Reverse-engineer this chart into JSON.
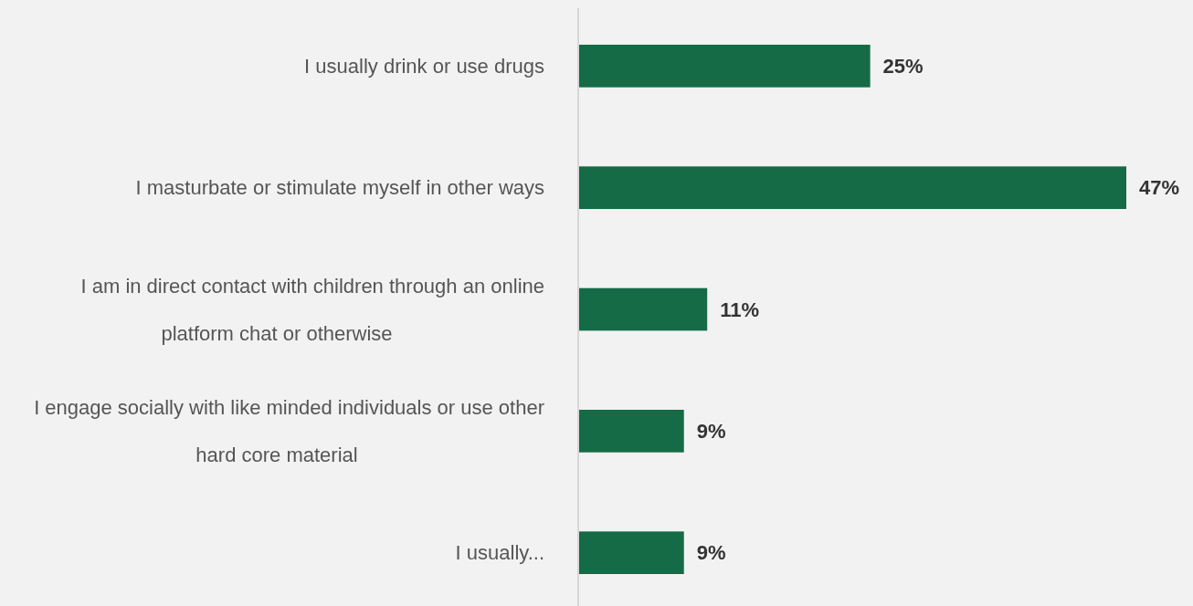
{
  "chart_data": {
    "type": "bar",
    "orientation": "horizontal",
    "categories": [
      "I usually drink or use drugs",
      "I masturbate or stimulate myself in other ways",
      "I am in direct contact with children through an online platform chat or otherwise",
      "I engage socially with like minded individuals or use other hard core material",
      "I usually..."
    ],
    "values": [
      25,
      47,
      11,
      9,
      9
    ],
    "value_labels": [
      "25%",
      "47%",
      "11%",
      "9%",
      "9%"
    ],
    "color": "#156b46"
  }
}
